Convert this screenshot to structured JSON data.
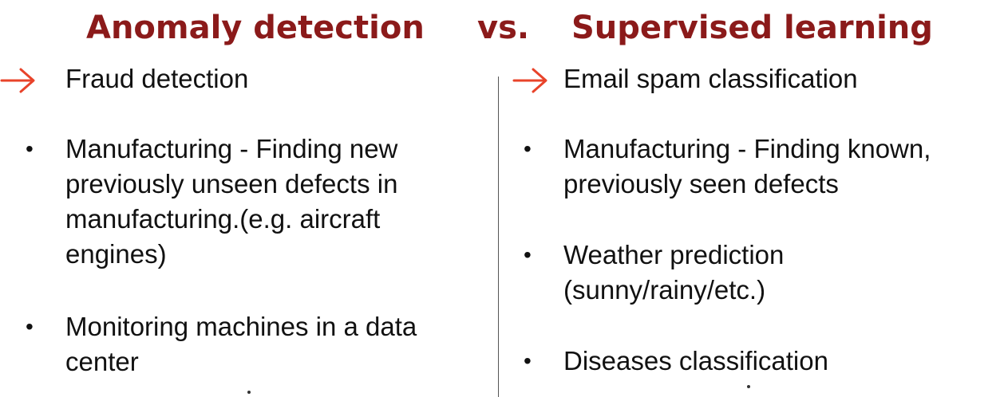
{
  "slide": {
    "title_left": "Anomaly detection",
    "title_vs": "vs.",
    "title_right": "Supervised learning",
    "title_color": "#8b1a1a",
    "arrow_color": "#e8432a",
    "left_items": [
      {
        "bullet": "arrow",
        "lines": [
          "Fraud detection"
        ]
      },
      {
        "bullet": "•",
        "lines": [
          "Manufacturing -  Finding new",
          "previously unseen defects in",
          "manufacturing.(e.g. aircraft",
          "engines)"
        ]
      },
      {
        "bullet": "•",
        "lines": [
          "Monitoring machines in a data",
          "center"
        ]
      }
    ],
    "right_items": [
      {
        "bullet": "arrow",
        "lines": [
          "Email spam classification"
        ]
      },
      {
        "bullet": "•",
        "lines": [
          "Manufacturing -  Finding known,",
          "previously seen defects"
        ]
      },
      {
        "bullet": "•",
        "lines": [
          "Weather prediction",
          "(sunny/rainy/etc.)"
        ]
      },
      {
        "bullet": "•",
        "lines": [
          "Diseases classification"
        ]
      }
    ]
  }
}
